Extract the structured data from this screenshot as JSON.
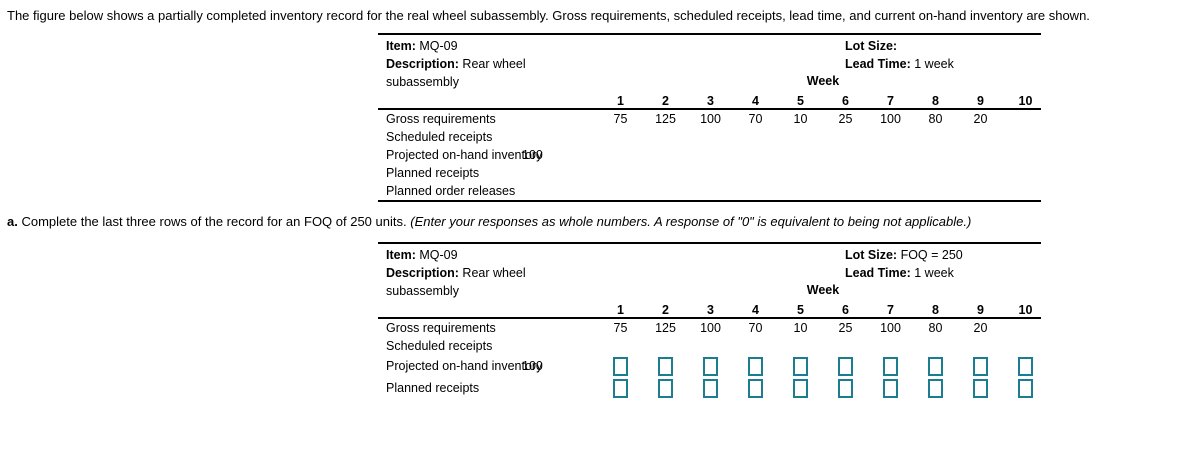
{
  "colors": {
    "input_box_border": "#1c7d90",
    "table_line": "#000000"
  },
  "intro": {
    "text": "The figure below shows a partially completed inventory record for the real wheel subassembly. Gross requirements, scheduled receipts, lead time, and current on-hand inventory are shown."
  },
  "question": {
    "label": "a.",
    "text": "Complete the last three rows of the record for an FOQ of 250 units.",
    "note": "(Enter your responses as whole numbers. A response of \"0\" is equivalent to being not applicable.)"
  },
  "tables": [
    {
      "item_label": "Item:",
      "item_value": "MQ-09",
      "description_label": "Description:",
      "description_value": "Rear wheel",
      "description_value_line2": "subassembly",
      "lot_size_label": "Lot Size:",
      "lot_size_value": "",
      "lead_time_label": "Lead Time:",
      "lead_time_value": "1 week",
      "week_label": "Week",
      "weeks": [
        "1",
        "2",
        "3",
        "4",
        "5",
        "6",
        "7",
        "8",
        "9",
        "10"
      ],
      "rows": [
        {
          "label": "Gross requirements",
          "type": "text",
          "values": [
            "75",
            "125",
            "100",
            "70",
            "10",
            "25",
            "100",
            "80",
            "20",
            ""
          ]
        },
        {
          "label": "Scheduled receipts",
          "type": "text",
          "values": [
            "",
            "",
            "",
            "",
            "",
            "",
            "",
            "",
            "",
            ""
          ]
        },
        {
          "label": "Projected on-hand inventory",
          "type": "text",
          "on_hand": "100",
          "values": [
            "",
            "",
            "",
            "",
            "",
            "",
            "",
            "",
            "",
            ""
          ]
        },
        {
          "label": "Planned receipts",
          "type": "text",
          "values": [
            "",
            "",
            "",
            "",
            "",
            "",
            "",
            "",
            "",
            ""
          ]
        },
        {
          "label": "Planned order releases",
          "type": "text",
          "values": [
            "",
            "",
            "",
            "",
            "",
            "",
            "",
            "",
            "",
            ""
          ]
        }
      ]
    },
    {
      "item_label": "Item:",
      "item_value": "MQ-09",
      "description_label": "Description:",
      "description_value": "Rear wheel",
      "description_value_line2": "subassembly",
      "lot_size_label": "Lot Size:",
      "lot_size_value": "FOQ = 250",
      "lead_time_label": "Lead Time:",
      "lead_time_value": "1 week",
      "week_label": "Week",
      "weeks": [
        "1",
        "2",
        "3",
        "4",
        "5",
        "6",
        "7",
        "8",
        "9",
        "10"
      ],
      "rows": [
        {
          "label": "Gross requirements",
          "type": "text",
          "values": [
            "75",
            "125",
            "100",
            "70",
            "10",
            "25",
            "100",
            "80",
            "20",
            ""
          ]
        },
        {
          "label": "Scheduled receipts",
          "type": "text",
          "values": [
            "",
            "",
            "",
            "",
            "",
            "",
            "",
            "",
            "",
            ""
          ]
        },
        {
          "label": "Projected on-hand inventory",
          "type": "input",
          "on_hand": "100",
          "values": [
            "",
            "",
            "",
            "",
            "",
            "",
            "",
            "",
            "",
            ""
          ]
        },
        {
          "label": "Planned receipts",
          "type": "input",
          "values": [
            "",
            "",
            "",
            "",
            "",
            "",
            "",
            "",
            "",
            ""
          ]
        }
      ]
    }
  ]
}
